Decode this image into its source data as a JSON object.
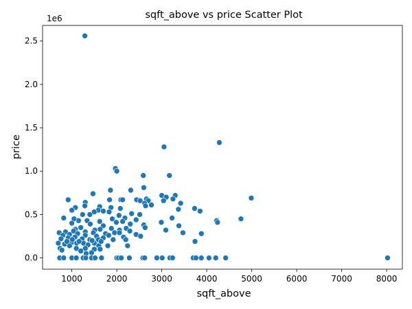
{
  "chart_data": {
    "type": "scatter",
    "title": "sqft_above vs price Scatter Plot",
    "xlabel": "sqft_above",
    "ylabel": "price",
    "y_offset_label": "1e6",
    "xlim": [
      350,
      8350
    ],
    "ylim": [
      -0.13,
      2.68
    ],
    "xticks": [
      1000,
      2000,
      3000,
      4000,
      5000,
      6000,
      7000,
      8000
    ],
    "xtick_labels": [
      "1000",
      "2000",
      "3000",
      "4000",
      "5000",
      "6000",
      "7000",
      "8000"
    ],
    "yticks": [
      0.0,
      0.5,
      1.0,
      1.5,
      2.0,
      2.5
    ],
    "ytick_labels": [
      "0.0",
      "0.5",
      "1.0",
      "1.5",
      "2.0",
      "2.5"
    ],
    "grid": false,
    "color": "#1f77b4",
    "points": [
      [
        1290,
        2.56
      ],
      [
        4280,
        1.33
      ],
      [
        3050,
        1.28
      ],
      [
        1970,
        1.03
      ],
      [
        2000,
        1.0
      ],
      [
        2590,
        0.95
      ],
      [
        3170,
        0.95
      ],
      [
        2600,
        0.81
      ],
      [
        2310,
        0.78
      ],
      [
        1860,
        0.78
      ],
      [
        3300,
        0.72
      ],
      [
        1470,
        0.74
      ],
      [
        2090,
        0.67
      ],
      [
        3000,
        0.72
      ],
      [
        2660,
        0.68
      ],
      [
        3100,
        0.7
      ],
      [
        4990,
        0.69
      ],
      [
        920,
        0.67
      ],
      [
        1840,
        0.67
      ],
      [
        2440,
        0.67
      ],
      [
        2130,
        0.67
      ],
      [
        2700,
        0.66
      ],
      [
        2520,
        0.66
      ],
      [
        3040,
        0.66
      ],
      [
        3250,
        0.68
      ],
      [
        2620,
        0.63
      ],
      [
        3420,
        0.63
      ],
      [
        2770,
        0.61
      ],
      [
        1300,
        0.64
      ],
      [
        1620,
        0.59
      ],
      [
        1080,
        0.58
      ],
      [
        1290,
        0.6
      ],
      [
        1870,
        0.58
      ],
      [
        2080,
        0.57
      ],
      [
        2640,
        0.6
      ],
      [
        3370,
        0.56
      ],
      [
        3730,
        0.57
      ],
      [
        1590,
        0.55
      ],
      [
        1830,
        0.53
      ],
      [
        1000,
        0.55
      ],
      [
        1700,
        0.54
      ],
      [
        1500,
        0.53
      ],
      [
        3850,
        0.54
      ],
      [
        2330,
        0.51
      ],
      [
        1240,
        0.5
      ],
      [
        1400,
        0.5
      ],
      [
        2510,
        0.5
      ],
      [
        2050,
        0.49
      ],
      [
        3230,
        0.46
      ],
      [
        4760,
        0.45
      ],
      [
        2180,
        0.46
      ],
      [
        1900,
        0.45
      ],
      [
        820,
        0.46
      ],
      [
        2430,
        0.44
      ],
      [
        1150,
        0.43
      ],
      [
        4220,
        0.43
      ],
      [
        4240,
        0.41
      ],
      [
        1050,
        0.45
      ],
      [
        1340,
        0.43
      ],
      [
        1620,
        0.42
      ],
      [
        1990,
        0.41
      ],
      [
        2130,
        0.42
      ],
      [
        2990,
        0.41
      ],
      [
        2600,
        0.38
      ],
      [
        3380,
        0.37
      ],
      [
        1000,
        0.4
      ],
      [
        1410,
        0.39
      ],
      [
        2300,
        0.39
      ],
      [
        1700,
        0.37
      ],
      [
        2630,
        0.35
      ],
      [
        1200,
        0.35
      ],
      [
        2210,
        0.34
      ],
      [
        1880,
        0.34
      ],
      [
        3090,
        0.32
      ],
      [
        1080,
        0.33
      ],
      [
        1630,
        0.33
      ],
      [
        1510,
        0.32
      ],
      [
        2060,
        0.32
      ],
      [
        2290,
        0.31
      ],
      [
        1950,
        0.29
      ],
      [
        3470,
        0.29
      ],
      [
        720,
        0.29
      ],
      [
        860,
        0.3
      ],
      [
        1040,
        0.31
      ],
      [
        1300,
        0.3
      ],
      [
        1480,
        0.29
      ],
      [
        1750,
        0.28
      ],
      [
        2060,
        0.29
      ],
      [
        3880,
        0.28
      ],
      [
        2430,
        0.27
      ],
      [
        800,
        0.26
      ],
      [
        950,
        0.27
      ],
      [
        1130,
        0.28
      ],
      [
        1300,
        0.26
      ],
      [
        1550,
        0.25
      ],
      [
        1820,
        0.26
      ],
      [
        2530,
        0.25
      ],
      [
        2150,
        0.24
      ],
      [
        760,
        0.22
      ],
      [
        920,
        0.23
      ],
      [
        1070,
        0.24
      ],
      [
        1230,
        0.22
      ],
      [
        1400,
        0.21
      ],
      [
        1590,
        0.21
      ],
      [
        1700,
        0.23
      ],
      [
        2200,
        0.21
      ],
      [
        700,
        0.17
      ],
      [
        840,
        0.16
      ],
      [
        1000,
        0.18
      ],
      [
        1110,
        0.17
      ],
      [
        1260,
        0.17
      ],
      [
        1500,
        0.17
      ],
      [
        1360,
        0.15
      ],
      [
        1600,
        0.14
      ],
      [
        2240,
        0.14
      ],
      [
        1800,
        0.14
      ],
      [
        3740,
        0.19
      ],
      [
        950,
        0.14
      ],
      [
        740,
        0.11
      ],
      [
        1100,
        0.11
      ],
      [
        1300,
        0.11
      ],
      [
        1500,
        0.1
      ],
      [
        1630,
        0.1
      ],
      [
        1440,
        0.06
      ],
      [
        1320,
        0.05
      ],
      [
        780,
        0.09
      ],
      [
        1200,
        0.08
      ],
      [
        890,
        0.19
      ],
      [
        1010,
        0.21
      ],
      [
        1160,
        0.19
      ],
      [
        1450,
        0.2
      ],
      [
        1650,
        0.19
      ],
      [
        1920,
        0.21
      ],
      [
        730,
        0.0
      ],
      [
        820,
        0.0
      ],
      [
        1000,
        0.0
      ],
      [
        1100,
        0.0
      ],
      [
        1250,
        0.0
      ],
      [
        1310,
        0.0
      ],
      [
        1440,
        0.0
      ],
      [
        1520,
        0.0
      ],
      [
        1660,
        0.0
      ],
      [
        2000,
        0.0
      ],
      [
        2040,
        0.0
      ],
      [
        2100,
        0.0
      ],
      [
        2280,
        0.0
      ],
      [
        2580,
        0.0
      ],
      [
        2620,
        0.0
      ],
      [
        2890,
        0.0
      ],
      [
        3010,
        0.0
      ],
      [
        3180,
        0.0
      ],
      [
        3240,
        0.0
      ],
      [
        3700,
        0.0
      ],
      [
        3760,
        0.0
      ],
      [
        3880,
        0.0
      ],
      [
        4050,
        0.0
      ],
      [
        4200,
        0.0
      ],
      [
        4420,
        0.0
      ],
      [
        8020,
        0.0
      ]
    ]
  }
}
